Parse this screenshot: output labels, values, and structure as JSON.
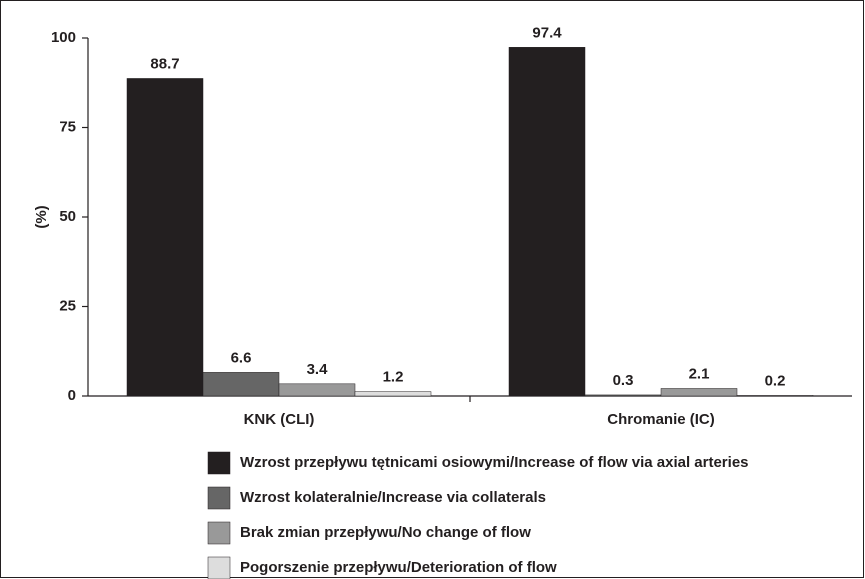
{
  "chart_data": {
    "type": "bar",
    "y_label": "(%)",
    "categories": [
      "KNK (CLI)",
      "Chromanie (IC)"
    ],
    "series": [
      {
        "name": "Wzrost przepływu tętnicami osiowymi/Increase of flow via axial arteries",
        "color": "#231f20",
        "values": [
          88.7,
          97.4
        ]
      },
      {
        "name": "Wzrost kolateralnie/Increase via collaterals",
        "color": "#666666",
        "values": [
          6.6,
          0.3
        ]
      },
      {
        "name": "Brak zmian przepływu/No change of flow",
        "color": "#999999",
        "values": [
          3.4,
          2.1
        ]
      },
      {
        "name": "Pogorszenie przepływu/Deterioration of flow",
        "color": "#dddddd",
        "values": [
          1.2,
          0.2
        ]
      }
    ],
    "ylim": [
      0,
      100
    ],
    "yticks": [
      0,
      25,
      50,
      75,
      100
    ],
    "legend": "bottom"
  }
}
